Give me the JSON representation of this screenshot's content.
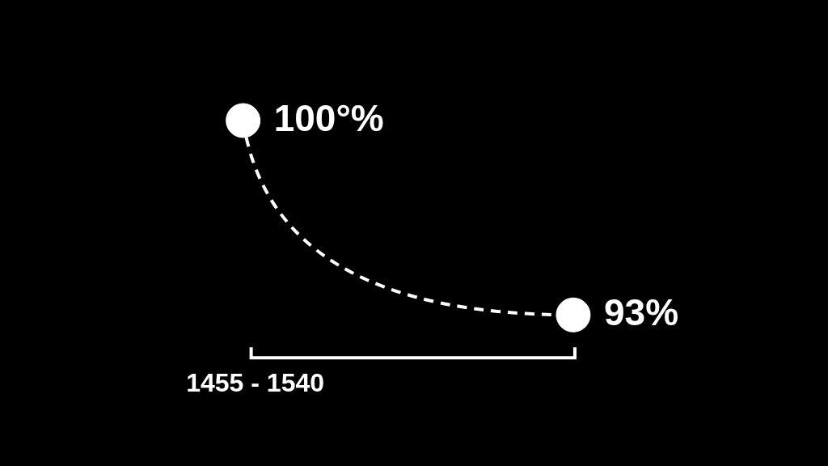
{
  "chart_data": {
    "type": "line",
    "xlabel": "1455 - 1540",
    "x": [
      1455,
      1540
    ],
    "values": [
      100,
      93
    ],
    "value_labels": [
      "100°%",
      "93%"
    ],
    "data_labels": true,
    "xlim": [
      1397,
      1601
    ],
    "ylim": [
      88.2,
      103.7
    ],
    "tick_labels": false,
    "grid": false,
    "color": "#ffffff",
    "marker": "circle",
    "line_style": "dashed"
  }
}
